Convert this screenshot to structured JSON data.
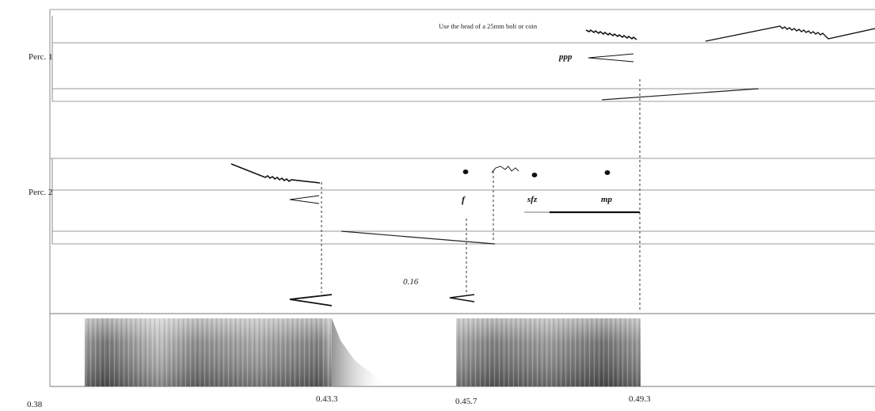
{
  "staves": {
    "perc1_label": "Perc. 1",
    "perc2_label": "Perc. 2"
  },
  "instruction": "Use the head of a 25mm bolt or coin",
  "dynamics": {
    "perc1_ppp": "ppp",
    "perc2_f": "f",
    "perc2_sfz": "sfz",
    "perc2_mp": "mp"
  },
  "duration_mark": "0.16",
  "timeline": {
    "start": "0.38",
    "t1": "0.43.3",
    "t2": "0.45.7",
    "t3": "0.49.3"
  },
  "colors": {
    "ink": "#111111",
    "staff_line": "#9a9a9a",
    "spectrogram": "#6f6f6f"
  }
}
